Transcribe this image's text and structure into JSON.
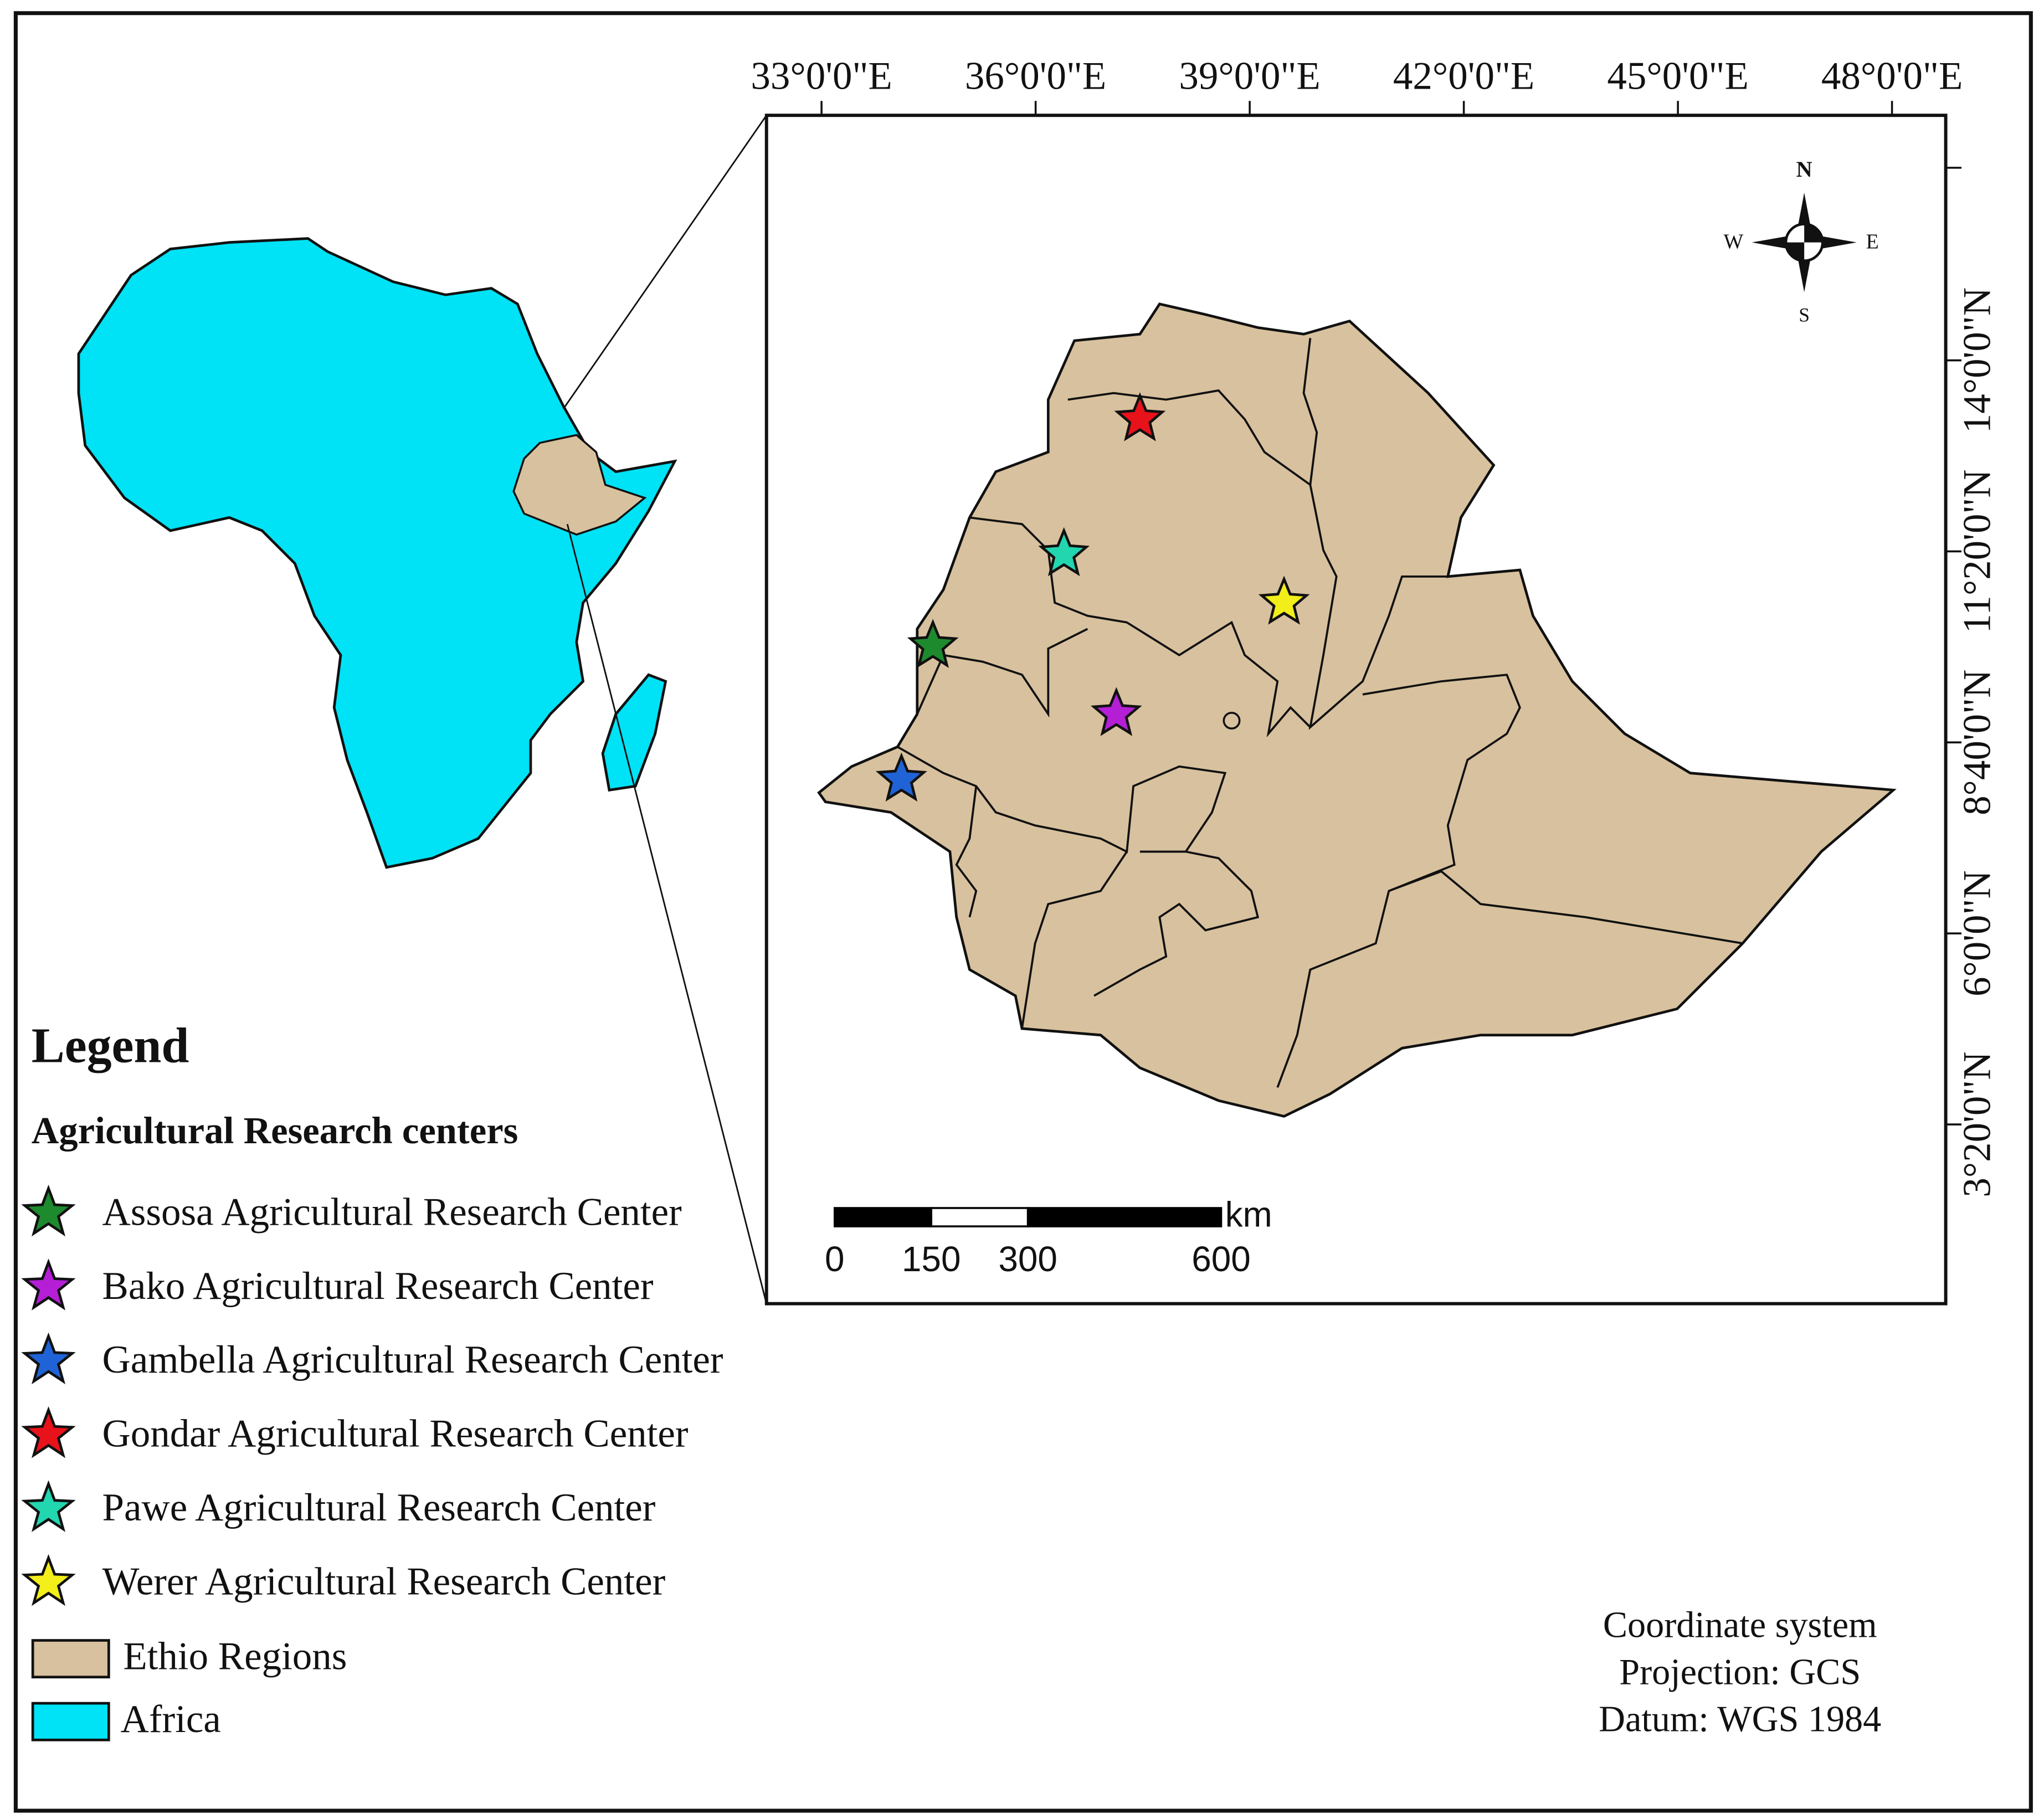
{
  "map": {
    "longitude_labels": [
      "33°0'0\"E",
      "36°0'0\"E",
      "39°0'0\"E",
      "42°0'0\"E",
      "45°0'0\"E",
      "48°0'0\"E"
    ],
    "latitude_labels": [
      "14°0'0\"N",
      "11°20'0\"N",
      "8°40'0\"N",
      "6°0'0\"N",
      "3°20'0\"N"
    ],
    "compass": {
      "north": "N",
      "south": "S",
      "west": "W",
      "east": "E"
    },
    "scale_bar": {
      "unit": "km",
      "ticks": [
        0,
        150,
        300,
        600
      ]
    },
    "legend": {
      "title": "Legend",
      "subtitle": "Agricultural Research centers",
      "items": [
        {
          "label": "Assosa Agricultural Research Center",
          "color": "#1e8a2e"
        },
        {
          "label": "Bako Agricultural Research Center",
          "color": "#b41fd6"
        },
        {
          "label": "Gambella Agricultural Research Center",
          "color": "#1f63d6"
        },
        {
          "label": "Gondar Agricultural Research Center",
          "color": "#e8121b"
        },
        {
          "label": "Pawe Agricultural Research Center",
          "color": "#22d6b0"
        },
        {
          "label": "Werer Agricultural Research Center",
          "color": "#f2ee1a"
        }
      ],
      "areas": [
        {
          "label": "Ethio Regions",
          "color": "#d8c19e"
        },
        {
          "label": "Africa",
          "color": "#00e2f5"
        }
      ]
    },
    "coordinate_system": [
      "Coordinate system",
      "Projection: GCS",
      "Datum: WGS 1984"
    ]
  }
}
